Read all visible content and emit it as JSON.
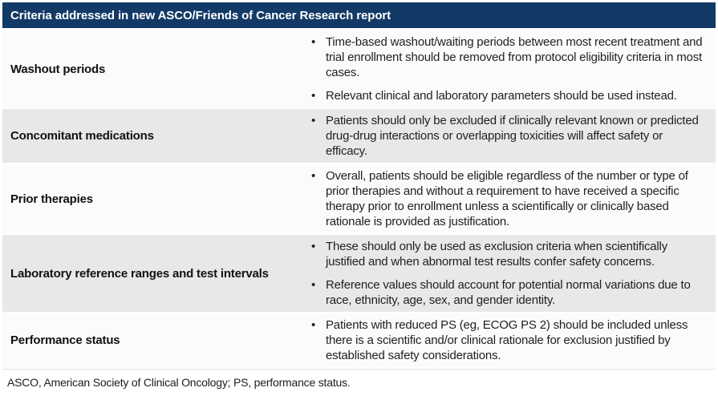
{
  "header": {
    "title": "Criteria addressed in new ASCO/Friends of Cancer Research report"
  },
  "table": {
    "rows": [
      {
        "label": "Washout periods",
        "shaded": false,
        "bullets": [
          "Time-based washout/waiting periods between most recent treatment and trial enrollment should be removed from protocol eligibility criteria in most cases.",
          "Relevant clinical and laboratory parameters should be used instead."
        ]
      },
      {
        "label": "Concomitant medications",
        "shaded": true,
        "bullets": [
          "Patients should only be excluded if clinically relevant known or predicted drug-drug interactions or overlapping toxicities will affect safety or efficacy."
        ]
      },
      {
        "label": "Prior therapies",
        "shaded": false,
        "bullets": [
          "Overall, patients should be eligible regardless of the number or type of prior therapies and without a requirement to have received a specific therapy prior to enrollment unless a scientifically or clinically based rationale is provided as justification."
        ]
      },
      {
        "label": "Laboratory reference ranges and test intervals",
        "shaded": true,
        "bullets": [
          "These should only be used as exclusion criteria when scientifically justified and when abnormal test results confer safety concerns.",
          "Reference values should account for potential normal variations due to race, ethnicity, age, sex, and gender identity."
        ]
      },
      {
        "label": "Performance status",
        "shaded": false,
        "bullets": [
          "Patients with reduced PS (eg, ECOG PS 2) should be included unless there is a scientific and/or clinical rationale for exclusion justified by established safety considerations."
        ]
      }
    ]
  },
  "footer": {
    "text": "ASCO, American Society of Clinical Oncology; PS, performance status."
  },
  "icons": {
    "bullet": "•"
  },
  "colors": {
    "header_bg": "#133a67",
    "header_text": "#ffffff",
    "row_shaded": "#e8e8ea",
    "row_plain": "#fbfbfb",
    "body_text": "#1f1f1f"
  }
}
